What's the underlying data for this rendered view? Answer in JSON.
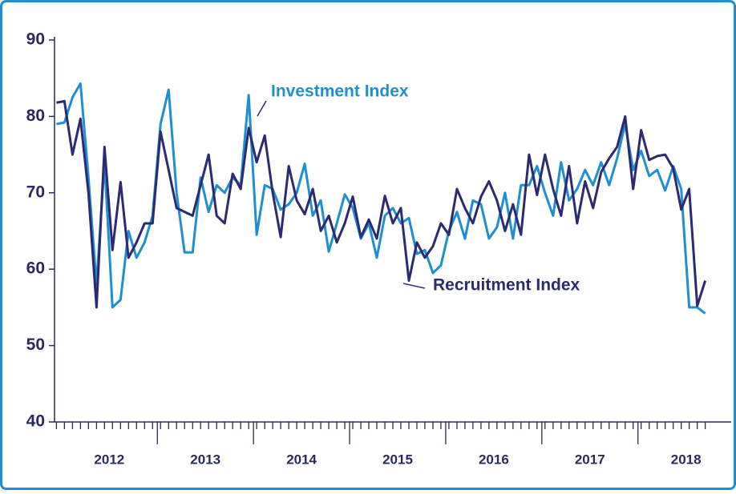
{
  "chart_data": {
    "type": "line",
    "x": [
      2011.95,
      2012.033,
      2012.117,
      2012.2,
      2012.283,
      2012.367,
      2012.45,
      2012.533,
      2012.617,
      2012.7,
      2012.783,
      2012.867,
      2012.95,
      2013.033,
      2013.117,
      2013.2,
      2013.283,
      2013.367,
      2013.45,
      2013.533,
      2013.617,
      2013.7,
      2013.783,
      2013.867,
      2013.95,
      2014.033,
      2014.117,
      2014.2,
      2014.283,
      2014.367,
      2014.45,
      2014.533,
      2014.617,
      2014.7,
      2014.783,
      2014.867,
      2014.95,
      2015.033,
      2015.117,
      2015.2,
      2015.283,
      2015.367,
      2015.45,
      2015.533,
      2015.617,
      2015.7,
      2015.783,
      2015.867,
      2015.95,
      2016.033,
      2016.117,
      2016.2,
      2016.283,
      2016.367,
      2016.45,
      2016.533,
      2016.617,
      2016.7,
      2016.783,
      2016.867,
      2016.95,
      2017.033,
      2017.117,
      2017.2,
      2017.283,
      2017.367,
      2017.45,
      2017.533,
      2017.617,
      2017.7,
      2017.783,
      2017.867,
      2017.95,
      2018.033,
      2018.117,
      2018.2,
      2018.283,
      2018.367,
      2018.45,
      2018.533,
      2018.617,
      2018.7
    ],
    "series": [
      {
        "name": "Investment Index",
        "color": "#1f8fd3",
        "values": [
          79,
          79.2,
          82.5,
          84.3,
          72,
          58,
          74,
          55,
          56,
          65,
          61.5,
          63.5,
          67,
          79,
          83.5,
          70,
          62.2,
          62.2,
          72,
          67.5,
          71,
          70,
          72,
          71,
          82.8,
          64.5,
          71,
          70.5,
          67.8,
          68.5,
          70,
          73.8,
          67,
          69,
          62.3,
          66,
          69.8,
          68,
          64,
          66,
          61.5,
          67,
          68,
          66,
          66.7,
          62,
          62.5,
          59.5,
          60.5,
          65,
          67.5,
          64,
          69,
          68.5,
          64,
          65.5,
          70,
          64,
          71,
          71,
          73.5,
          70,
          67,
          74,
          69,
          70.5,
          73,
          71,
          74,
          71,
          74.5,
          79,
          73,
          75.5,
          72.2,
          73,
          70.3,
          73.5,
          70.5,
          55,
          55,
          54.2
        ]
      },
      {
        "name": "Recruitment Index",
        "color": "#2b2a72",
        "values": [
          81.8,
          82,
          75,
          79.7,
          70,
          55,
          76,
          62.5,
          71.4,
          61.5,
          63.5,
          66,
          66,
          78,
          73,
          68,
          67.5,
          67,
          71,
          75,
          67,
          66,
          72.5,
          70.5,
          78.5,
          74,
          77.5,
          70,
          64.2,
          73.5,
          69,
          67.2,
          70.5,
          65,
          67,
          63.5,
          66,
          69.5,
          64.2,
          66.5,
          64,
          69.6,
          66,
          68,
          58.5,
          63.5,
          61.5,
          63,
          66,
          64.5,
          70.5,
          68,
          66,
          69.5,
          71.5,
          69,
          65,
          68.5,
          64.5,
          75,
          69.7,
          75,
          70.5,
          67,
          73.5,
          66,
          71.5,
          68,
          72.7,
          74.5,
          76,
          80,
          70.5,
          78.2,
          74.3,
          74.8,
          75,
          73.2,
          67.8,
          70.5,
          55.2,
          58.5
        ]
      }
    ],
    "xlim": [
      2011.93,
      2018.97
    ],
    "xticks": [
      {
        "value": 2012.5,
        "label": "2012"
      },
      {
        "value": 2013.5,
        "label": "2013"
      },
      {
        "value": 2014.5,
        "label": "2014"
      },
      {
        "value": 2015.5,
        "label": "2015"
      },
      {
        "value": 2016.5,
        "label": "2016"
      },
      {
        "value": 2017.5,
        "label": "2017"
      },
      {
        "value": 2018.5,
        "label": "2018"
      }
    ],
    "x_major_ticks": [
      2013,
      2014,
      2015,
      2016,
      2017,
      2018
    ],
    "ylim": [
      40,
      90
    ],
    "yticks": [
      40,
      50,
      60,
      70,
      80,
      90
    ],
    "grid": false
  }
}
